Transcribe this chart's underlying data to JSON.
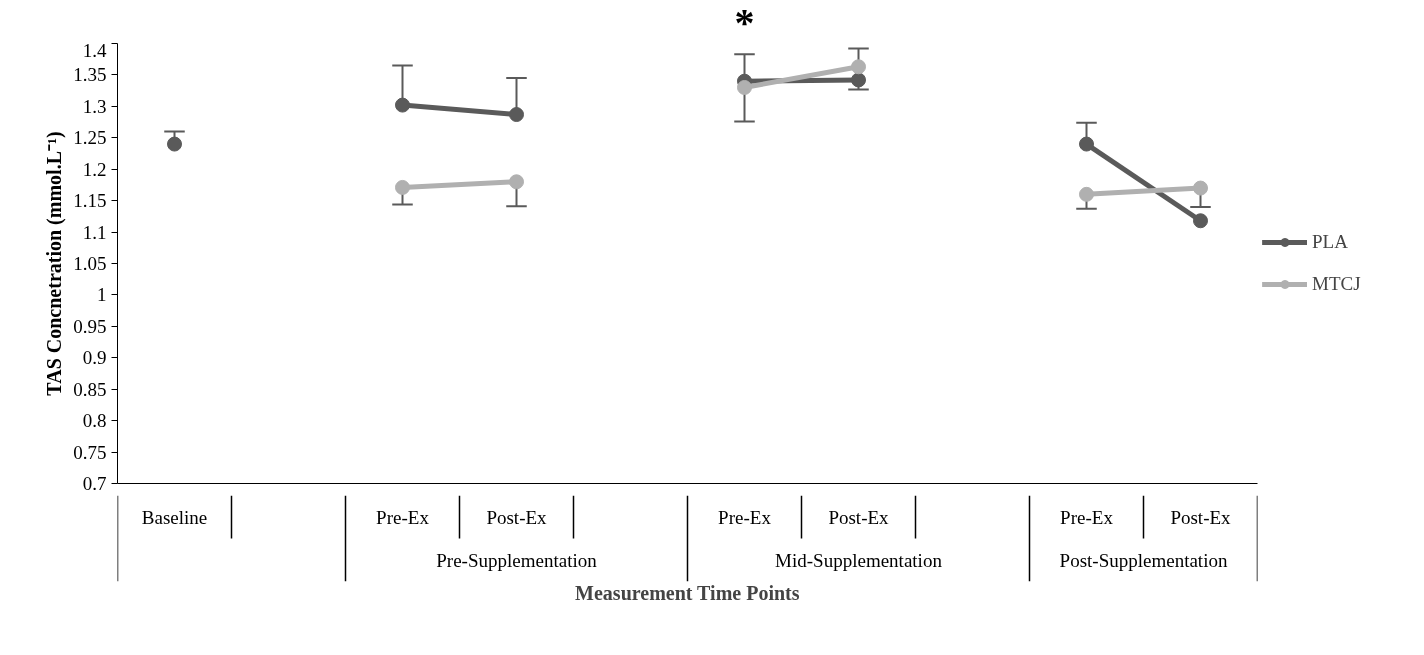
{
  "chart_data": {
    "type": "line",
    "xlabel": "Measurement Time Points",
    "ylabel": "TAS Concnetration (mmol.L⁻¹)",
    "categories": [
      "Baseline",
      null,
      "Pre-Ex",
      "Post-Ex",
      null,
      "Pre-Ex",
      "Post-Ex",
      null,
      "Pre-Ex",
      "Post-Ex"
    ],
    "series": [
      {
        "name": "PLA",
        "color": "#5a5a5a",
        "values": [
          1.24,
          null,
          1.302,
          1.287,
          null,
          1.34,
          1.342,
          null,
          1.24,
          1.118
        ],
        "errors": [
          [
            1.24,
            1.26
          ],
          null,
          [
            1.302,
            1.365
          ],
          [
            1.287,
            1.345
          ],
          null,
          [
            1.34,
            1.383
          ],
          [
            1.327,
            1.342
          ],
          null,
          [
            1.24,
            1.274
          ],
          null
        ]
      },
      {
        "name": "MTCJ",
        "color": "#b0b0b0",
        "values": [
          null,
          null,
          1.171,
          1.18,
          null,
          1.33,
          1.363,
          null,
          1.16,
          1.17
        ],
        "errors": [
          null,
          null,
          [
            1.144,
            1.171
          ],
          [
            1.141,
            1.18
          ],
          null,
          [
            1.276,
            1.33
          ],
          [
            1.363,
            1.392
          ],
          null,
          [
            1.137,
            1.16
          ],
          [
            1.14,
            1.17
          ]
        ]
      }
    ],
    "ylim": [
      0.7,
      1.4
    ],
    "yticks": [
      0.7,
      0.75,
      0.8,
      0.85,
      0.9,
      0.95,
      1,
      1.05,
      1.1,
      1.15,
      1.2,
      1.25,
      1.3,
      1.35,
      1.4
    ],
    "grid": false,
    "legend": "right",
    "marker": "circle",
    "line_style": "solid",
    "annotations": [
      "*",
      "Pre-Supplementation",
      "Mid-Supplementation",
      "Post-Supplementation"
    ]
  }
}
